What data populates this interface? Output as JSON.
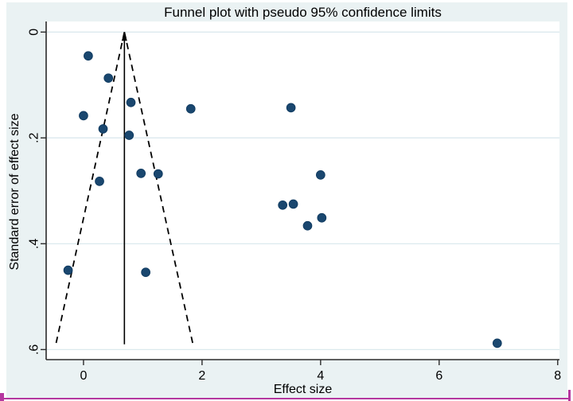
{
  "chart_data": {
    "type": "scatter",
    "title": "Funnel plot with pseudo 95% confidence limits",
    "xlabel": "Effect size",
    "ylabel": "Standard error of effect size",
    "x_ticks": [
      0,
      2,
      4,
      6,
      8
    ],
    "x_tick_labels": [
      "0",
      "2",
      "4",
      "6",
      "8"
    ],
    "y_ticks": [
      0,
      0.2,
      0.4,
      0.6
    ],
    "y_tick_labels": [
      "0",
      ".2",
      ".4",
      ".6"
    ],
    "xlim": [
      -0.63,
      8.03
    ],
    "ylim": [
      -0.02,
      0.619
    ],
    "y_axis_inverted": true,
    "grid": "horizontal-only",
    "legend": "none",
    "points": [
      {
        "x": 0.08,
        "y": 0.045
      },
      {
        "x": 0.42,
        "y": 0.087
      },
      {
        "x": 0.8,
        "y": 0.133
      },
      {
        "x": 1.81,
        "y": 0.145
      },
      {
        "x": 3.5,
        "y": 0.143
      },
      {
        "x": 0.0,
        "y": 0.158
      },
      {
        "x": 0.33,
        "y": 0.183
      },
      {
        "x": 0.77,
        "y": 0.195
      },
      {
        "x": 0.97,
        "y": 0.267
      },
      {
        "x": 1.26,
        "y": 0.268
      },
      {
        "x": 0.27,
        "y": 0.282
      },
      {
        "x": 4.0,
        "y": 0.27
      },
      {
        "x": 3.36,
        "y": 0.327
      },
      {
        "x": 3.54,
        "y": 0.325
      },
      {
        "x": 3.78,
        "y": 0.366
      },
      {
        "x": 4.02,
        "y": 0.351
      },
      {
        "x": -0.26,
        "y": 0.45
      },
      {
        "x": 1.05,
        "y": 0.454
      },
      {
        "x": 6.98,
        "y": 0.588
      }
    ],
    "funnel": {
      "center_effect": 0.69,
      "se_top": 0.0,
      "se_bottom": 0.59,
      "ci_multiplier": 1.96,
      "center_line_style": "solid-with-up-arrow",
      "limit_line_style": "dashed"
    },
    "colors": {
      "figure_background": "#eaf2f3",
      "plot_background": "#ffffff",
      "gridline": "#dce9ee",
      "axis_line": "#2b2b2b",
      "tick_text": "#000000",
      "marker_fill": "#1a476f",
      "marker_edge": "#0f3a60",
      "funnel_line": "#000000",
      "selection_border": "#b5379f"
    }
  }
}
